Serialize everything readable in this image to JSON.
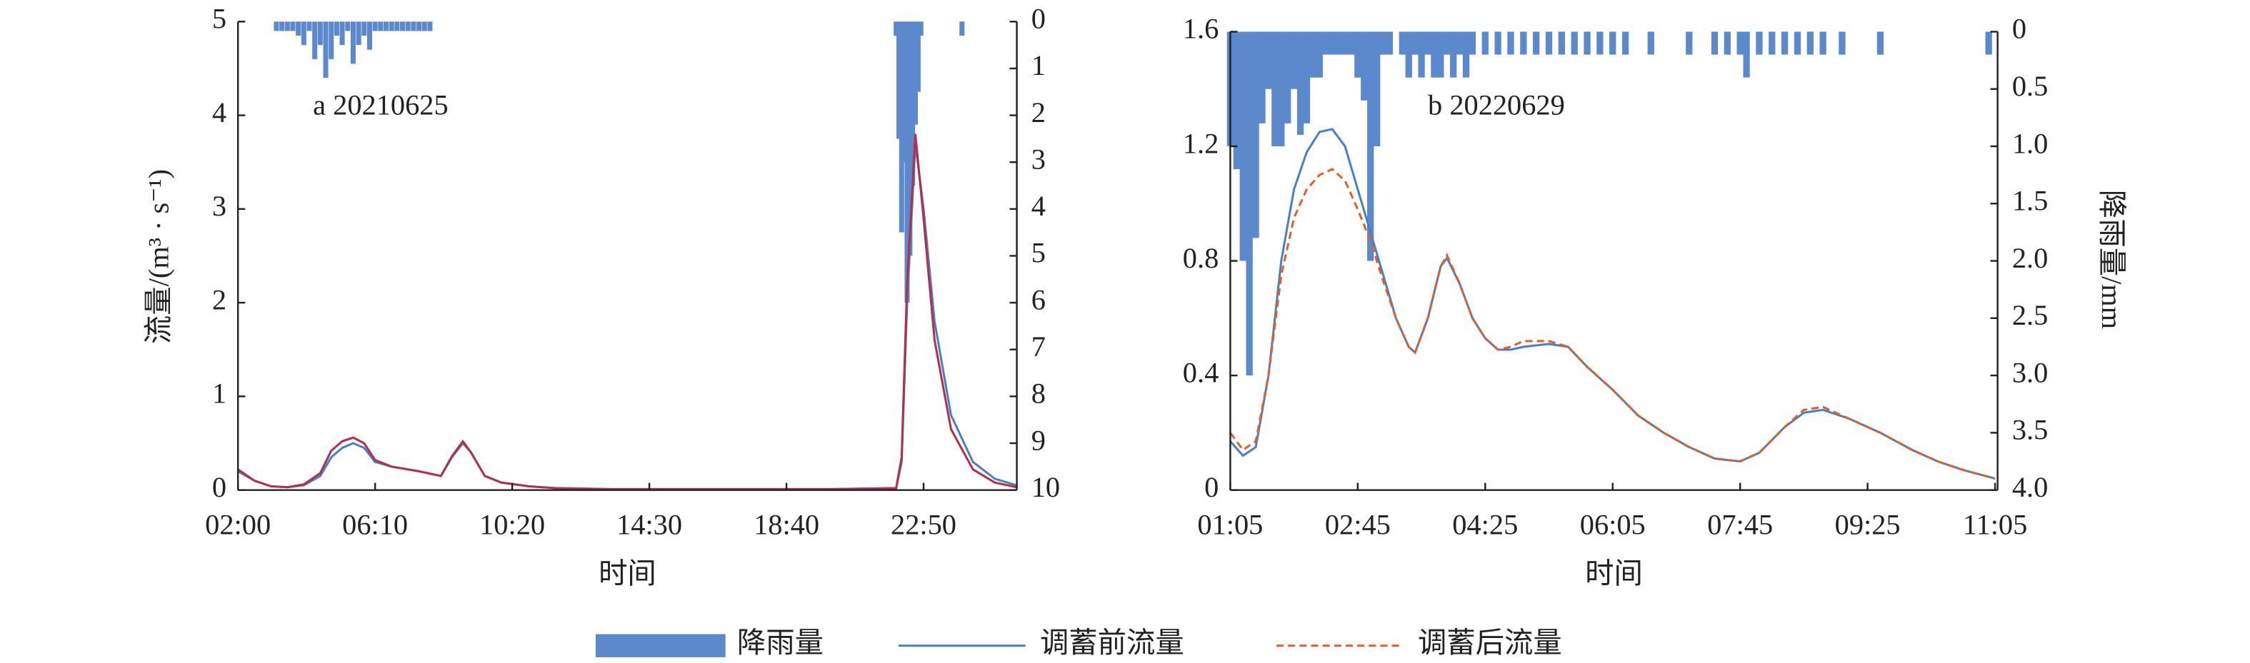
{
  "chart_data": [
    {
      "type": "combo",
      "annotation": "a  20210625",
      "xlabel": "时间",
      "ylabel": "流量/(m³ · s⁻¹)",
      "xlim": [
        120,
        1540
      ],
      "xticks": [
        {
          "value": 120,
          "label": "02:00"
        },
        {
          "value": 370,
          "label": "06:10"
        },
        {
          "value": 620,
          "label": "10:20"
        },
        {
          "value": 870,
          "label": "14:30"
        },
        {
          "value": 1120,
          "label": "18:40"
        },
        {
          "value": 1370,
          "label": "22:50"
        }
      ],
      "ylim": [
        0,
        5
      ],
      "yticks": [
        0,
        1,
        2,
        3,
        4,
        5
      ],
      "y2lim": [
        10,
        0
      ],
      "y2ticks": [
        0,
        1,
        2,
        3,
        4,
        5,
        6,
        7,
        8,
        9,
        10
      ],
      "series": [
        {
          "type": "bar",
          "axis": "y2",
          "color": "#5b89cc",
          "x": [
            190,
            200,
            210,
            220,
            230,
            240,
            250,
            260,
            270,
            280,
            290,
            300,
            310,
            320,
            330,
            340,
            350,
            360,
            370,
            380,
            390,
            400,
            410,
            420,
            430,
            440,
            450,
            460,
            470,
            1320,
            1325,
            1330,
            1335,
            1340,
            1345,
            1350,
            1355,
            1360,
            1365,
            1440
          ],
          "values": [
            0.2,
            0.2,
            0.2,
            0.2,
            0.3,
            0.5,
            0.2,
            0.8,
            0.5,
            1.2,
            0.8,
            0.3,
            0.5,
            0.2,
            0.9,
            0.5,
            0.3,
            0.6,
            0.2,
            0.2,
            0.2,
            0.2,
            0.2,
            0.2,
            0.2,
            0.2,
            0.2,
            0.2,
            0.2,
            0.3,
            2.5,
            4.5,
            3.0,
            6.0,
            5.0,
            3.5,
            2.2,
            1.5,
            0.3,
            0.3
          ]
        },
        {
          "type": "line",
          "color": "#4a7fc1",
          "x": [
            120,
            150,
            180,
            210,
            240,
            270,
            290,
            310,
            330,
            350,
            370,
            400,
            450,
            490,
            510,
            530,
            545,
            570,
            600,
            650,
            700,
            800,
            1000,
            1200,
            1320,
            1330,
            1340,
            1355,
            1370,
            1390,
            1420,
            1460,
            1500,
            1540
          ],
          "values": [
            0.2,
            0.1,
            0.04,
            0.03,
            0.05,
            0.15,
            0.35,
            0.45,
            0.5,
            0.45,
            0.3,
            0.25,
            0.2,
            0.15,
            0.35,
            0.5,
            0.4,
            0.15,
            0.08,
            0.04,
            0.02,
            0.01,
            0.01,
            0.01,
            0.02,
            0.3,
            2.0,
            3.7,
            3.0,
            1.8,
            0.8,
            0.3,
            0.12,
            0.05
          ]
        },
        {
          "type": "line",
          "color": "#b3304c",
          "x": [
            120,
            150,
            180,
            210,
            240,
            270,
            290,
            310,
            330,
            350,
            370,
            400,
            450,
            490,
            510,
            530,
            545,
            570,
            600,
            650,
            700,
            800,
            1000,
            1200,
            1320,
            1330,
            1340,
            1355,
            1370,
            1390,
            1420,
            1460,
            1500,
            1540
          ],
          "values": [
            0.22,
            0.1,
            0.04,
            0.03,
            0.06,
            0.18,
            0.42,
            0.52,
            0.56,
            0.5,
            0.32,
            0.25,
            0.2,
            0.15,
            0.36,
            0.52,
            0.4,
            0.15,
            0.08,
            0.04,
            0.02,
            0.01,
            0.01,
            0.01,
            0.02,
            0.35,
            2.2,
            3.8,
            2.9,
            1.6,
            0.65,
            0.22,
            0.08,
            0.03
          ]
        }
      ]
    },
    {
      "type": "combo",
      "annotation": "b  20220629",
      "xlabel": "时间",
      "y2label": "降雨量/mm",
      "xlim": [
        65,
        667
      ],
      "xticks": [
        {
          "value": 65,
          "label": "01:05"
        },
        {
          "value": 165,
          "label": "02:45"
        },
        {
          "value": 265,
          "label": "04:25"
        },
        {
          "value": 365,
          "label": "06:05"
        },
        {
          "value": 465,
          "label": "07:45"
        },
        {
          "value": 565,
          "label": "09:25"
        },
        {
          "value": 665,
          "label": "11:05"
        }
      ],
      "ylim": [
        0,
        1.6
      ],
      "yticks": [
        0,
        0.4,
        0.8,
        1.2,
        1.6
      ],
      "y2lim": [
        4,
        0
      ],
      "y2ticks": [
        0,
        0.5,
        {
          "value": 1,
          "label": "1.0"
        },
        1.5,
        {
          "value": 2,
          "label": "2.0"
        },
        2.5,
        {
          "value": 3,
          "label": "3.0"
        },
        3.5,
        {
          "value": 4,
          "label": "4.0"
        }
      ],
      "series": [
        {
          "type": "bar",
          "axis": "y2",
          "name": "降雨量",
          "color": "#5b89cc",
          "x": [
            65,
            70,
            75,
            80,
            85,
            90,
            95,
            100,
            105,
            110,
            115,
            120,
            125,
            130,
            135,
            140,
            145,
            150,
            155,
            160,
            165,
            170,
            175,
            180,
            185,
            190,
            200,
            205,
            210,
            215,
            220,
            225,
            230,
            235,
            240,
            245,
            250,
            255,
            265,
            275,
            285,
            295,
            305,
            315,
            325,
            335,
            345,
            355,
            365,
            375,
            395,
            425,
            445,
            455,
            465,
            470,
            480,
            490,
            500,
            510,
            520,
            530,
            545,
            575,
            660
          ],
          "values": [
            1.0,
            1.2,
            2.0,
            3.0,
            1.8,
            0.8,
            0.5,
            1.0,
            1.0,
            0.8,
            0.5,
            0.9,
            0.8,
            0.4,
            0.4,
            0.2,
            0.2,
            0.2,
            0.2,
            0.2,
            0.4,
            0.6,
            2.0,
            1.0,
            0.2,
            0.2,
            0.2,
            0.4,
            0.2,
            0.4,
            0.2,
            0.4,
            0.4,
            0.2,
            0.4,
            0.2,
            0.4,
            0.2,
            0.2,
            0.2,
            0.2,
            0.2,
            0.2,
            0.2,
            0.2,
            0.2,
            0.2,
            0.2,
            0.2,
            0.2,
            0.2,
            0.2,
            0.2,
            0.2,
            0.2,
            0.4,
            0.2,
            0.2,
            0.2,
            0.2,
            0.2,
            0.2,
            0.2,
            0.2,
            0.2
          ]
        },
        {
          "type": "line",
          "name": "调蓄前流量",
          "color": "#4a7fc1",
          "x": [
            65,
            75,
            85,
            95,
            105,
            115,
            125,
            135,
            145,
            155,
            165,
            175,
            185,
            195,
            205,
            210,
            220,
            230,
            235,
            245,
            255,
            265,
            275,
            285,
            295,
            315,
            330,
            345,
            365,
            385,
            405,
            425,
            445,
            465,
            480,
            500,
            515,
            530,
            550,
            575,
            600,
            620,
            640,
            665
          ],
          "values": [
            0.17,
            0.12,
            0.15,
            0.4,
            0.8,
            1.05,
            1.18,
            1.25,
            1.26,
            1.2,
            1.05,
            0.9,
            0.75,
            0.6,
            0.5,
            0.48,
            0.6,
            0.78,
            0.81,
            0.72,
            0.6,
            0.53,
            0.49,
            0.49,
            0.5,
            0.51,
            0.5,
            0.43,
            0.35,
            0.26,
            0.2,
            0.15,
            0.11,
            0.1,
            0.13,
            0.22,
            0.27,
            0.28,
            0.25,
            0.2,
            0.14,
            0.1,
            0.07,
            0.04
          ]
        },
        {
          "type": "line",
          "name": "调蓄后流量",
          "color": "#e0602c",
          "dashed": true,
          "x": [
            65,
            75,
            85,
            95,
            105,
            115,
            125,
            135,
            145,
            155,
            165,
            175,
            185,
            195,
            205,
            210,
            220,
            230,
            235,
            245,
            255,
            265,
            275,
            285,
            295,
            315,
            330,
            345,
            365,
            385,
            405,
            425,
            445,
            465,
            480,
            500,
            515,
            530,
            550,
            575,
            600,
            620,
            640,
            665
          ],
          "values": [
            0.2,
            0.14,
            0.17,
            0.4,
            0.75,
            0.95,
            1.05,
            1.1,
            1.12,
            1.08,
            0.98,
            0.87,
            0.73,
            0.6,
            0.5,
            0.48,
            0.6,
            0.78,
            0.82,
            0.72,
            0.6,
            0.53,
            0.49,
            0.5,
            0.52,
            0.52,
            0.5,
            0.43,
            0.35,
            0.26,
            0.2,
            0.15,
            0.11,
            0.1,
            0.13,
            0.22,
            0.28,
            0.29,
            0.25,
            0.2,
            0.14,
            0.1,
            0.07,
            0.04
          ]
        }
      ]
    }
  ]
}
